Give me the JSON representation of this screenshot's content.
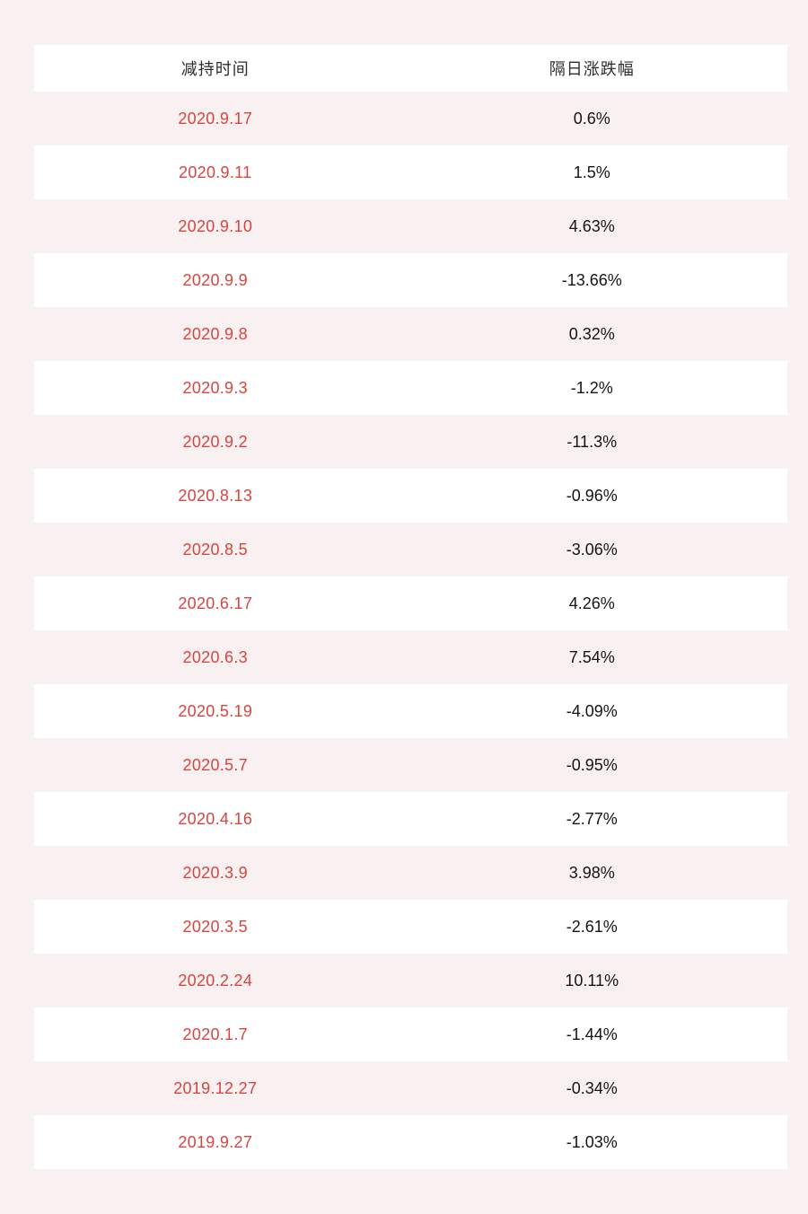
{
  "page": {
    "background_color": "#f9f1f1",
    "row_alt_color": "#ffffff",
    "date_text_color": "#d8453f",
    "value_text_color": "#141414"
  },
  "table": {
    "columns": {
      "date_label": "减持时间",
      "change_label": "隔日涨跌幅"
    },
    "rows": [
      {
        "date": "2020.9.17",
        "change": "0.6%"
      },
      {
        "date": "2020.9.11",
        "change": "1.5%"
      },
      {
        "date": "2020.9.10",
        "change": "4.63%"
      },
      {
        "date": "2020.9.9",
        "change": "-13.66%"
      },
      {
        "date": "2020.9.8",
        "change": "0.32%"
      },
      {
        "date": "2020.9.3",
        "change": "-1.2%"
      },
      {
        "date": "2020.9.2",
        "change": "-11.3%"
      },
      {
        "date": "2020.8.13",
        "change": "-0.96%"
      },
      {
        "date": "2020.8.5",
        "change": "-3.06%"
      },
      {
        "date": "2020.6.17",
        "change": "4.26%"
      },
      {
        "date": "2020.6.3",
        "change": "7.54%"
      },
      {
        "date": "2020.5.19",
        "change": "-4.09%"
      },
      {
        "date": "2020.5.7",
        "change": "-0.95%"
      },
      {
        "date": "2020.4.16",
        "change": "-2.77%"
      },
      {
        "date": "2020.3.9",
        "change": "3.98%"
      },
      {
        "date": "2020.3.5",
        "change": "-2.61%"
      },
      {
        "date": "2020.2.24",
        "change": "10.11%"
      },
      {
        "date": "2020.1.7",
        "change": "-1.44%"
      },
      {
        "date": "2019.12.27",
        "change": "-0.34%"
      },
      {
        "date": "2019.9.27",
        "change": "-1.03%"
      }
    ]
  },
  "chart_data": {
    "type": "table",
    "title": "",
    "columns": [
      "减持时间",
      "隔日涨跌幅"
    ],
    "rows": [
      [
        "2020.9.17",
        "0.6%"
      ],
      [
        "2020.9.11",
        "1.5%"
      ],
      [
        "2020.9.10",
        "4.63%"
      ],
      [
        "2020.9.9",
        "-13.66%"
      ],
      [
        "2020.9.8",
        "0.32%"
      ],
      [
        "2020.9.3",
        "-1.2%"
      ],
      [
        "2020.9.2",
        "-11.3%"
      ],
      [
        "2020.8.13",
        "-0.96%"
      ],
      [
        "2020.8.5",
        "-3.06%"
      ],
      [
        "2020.6.17",
        "4.26%"
      ],
      [
        "2020.6.3",
        "7.54%"
      ],
      [
        "2020.5.19",
        "-4.09%"
      ],
      [
        "2020.5.7",
        "-0.95%"
      ],
      [
        "2020.4.16",
        "-2.77%"
      ],
      [
        "2020.3.9",
        "3.98%"
      ],
      [
        "2020.3.5",
        "-2.61%"
      ],
      [
        "2020.2.24",
        "10.11%"
      ],
      [
        "2020.1.7",
        "-1.44%"
      ],
      [
        "2019.12.27",
        "-0.34%"
      ],
      [
        "2019.9.27",
        "-1.03%"
      ]
    ],
    "values_numeric_pct": [
      0.6,
      1.5,
      4.63,
      -13.66,
      0.32,
      -1.2,
      -11.3,
      -0.96,
      -3.06,
      4.26,
      7.54,
      -4.09,
      -0.95,
      -2.77,
      3.98,
      -2.61,
      10.11,
      -1.44,
      -0.34,
      -1.03
    ],
    "layout": {
      "header_background": "#ffffff",
      "striped": true,
      "grid": false
    }
  }
}
